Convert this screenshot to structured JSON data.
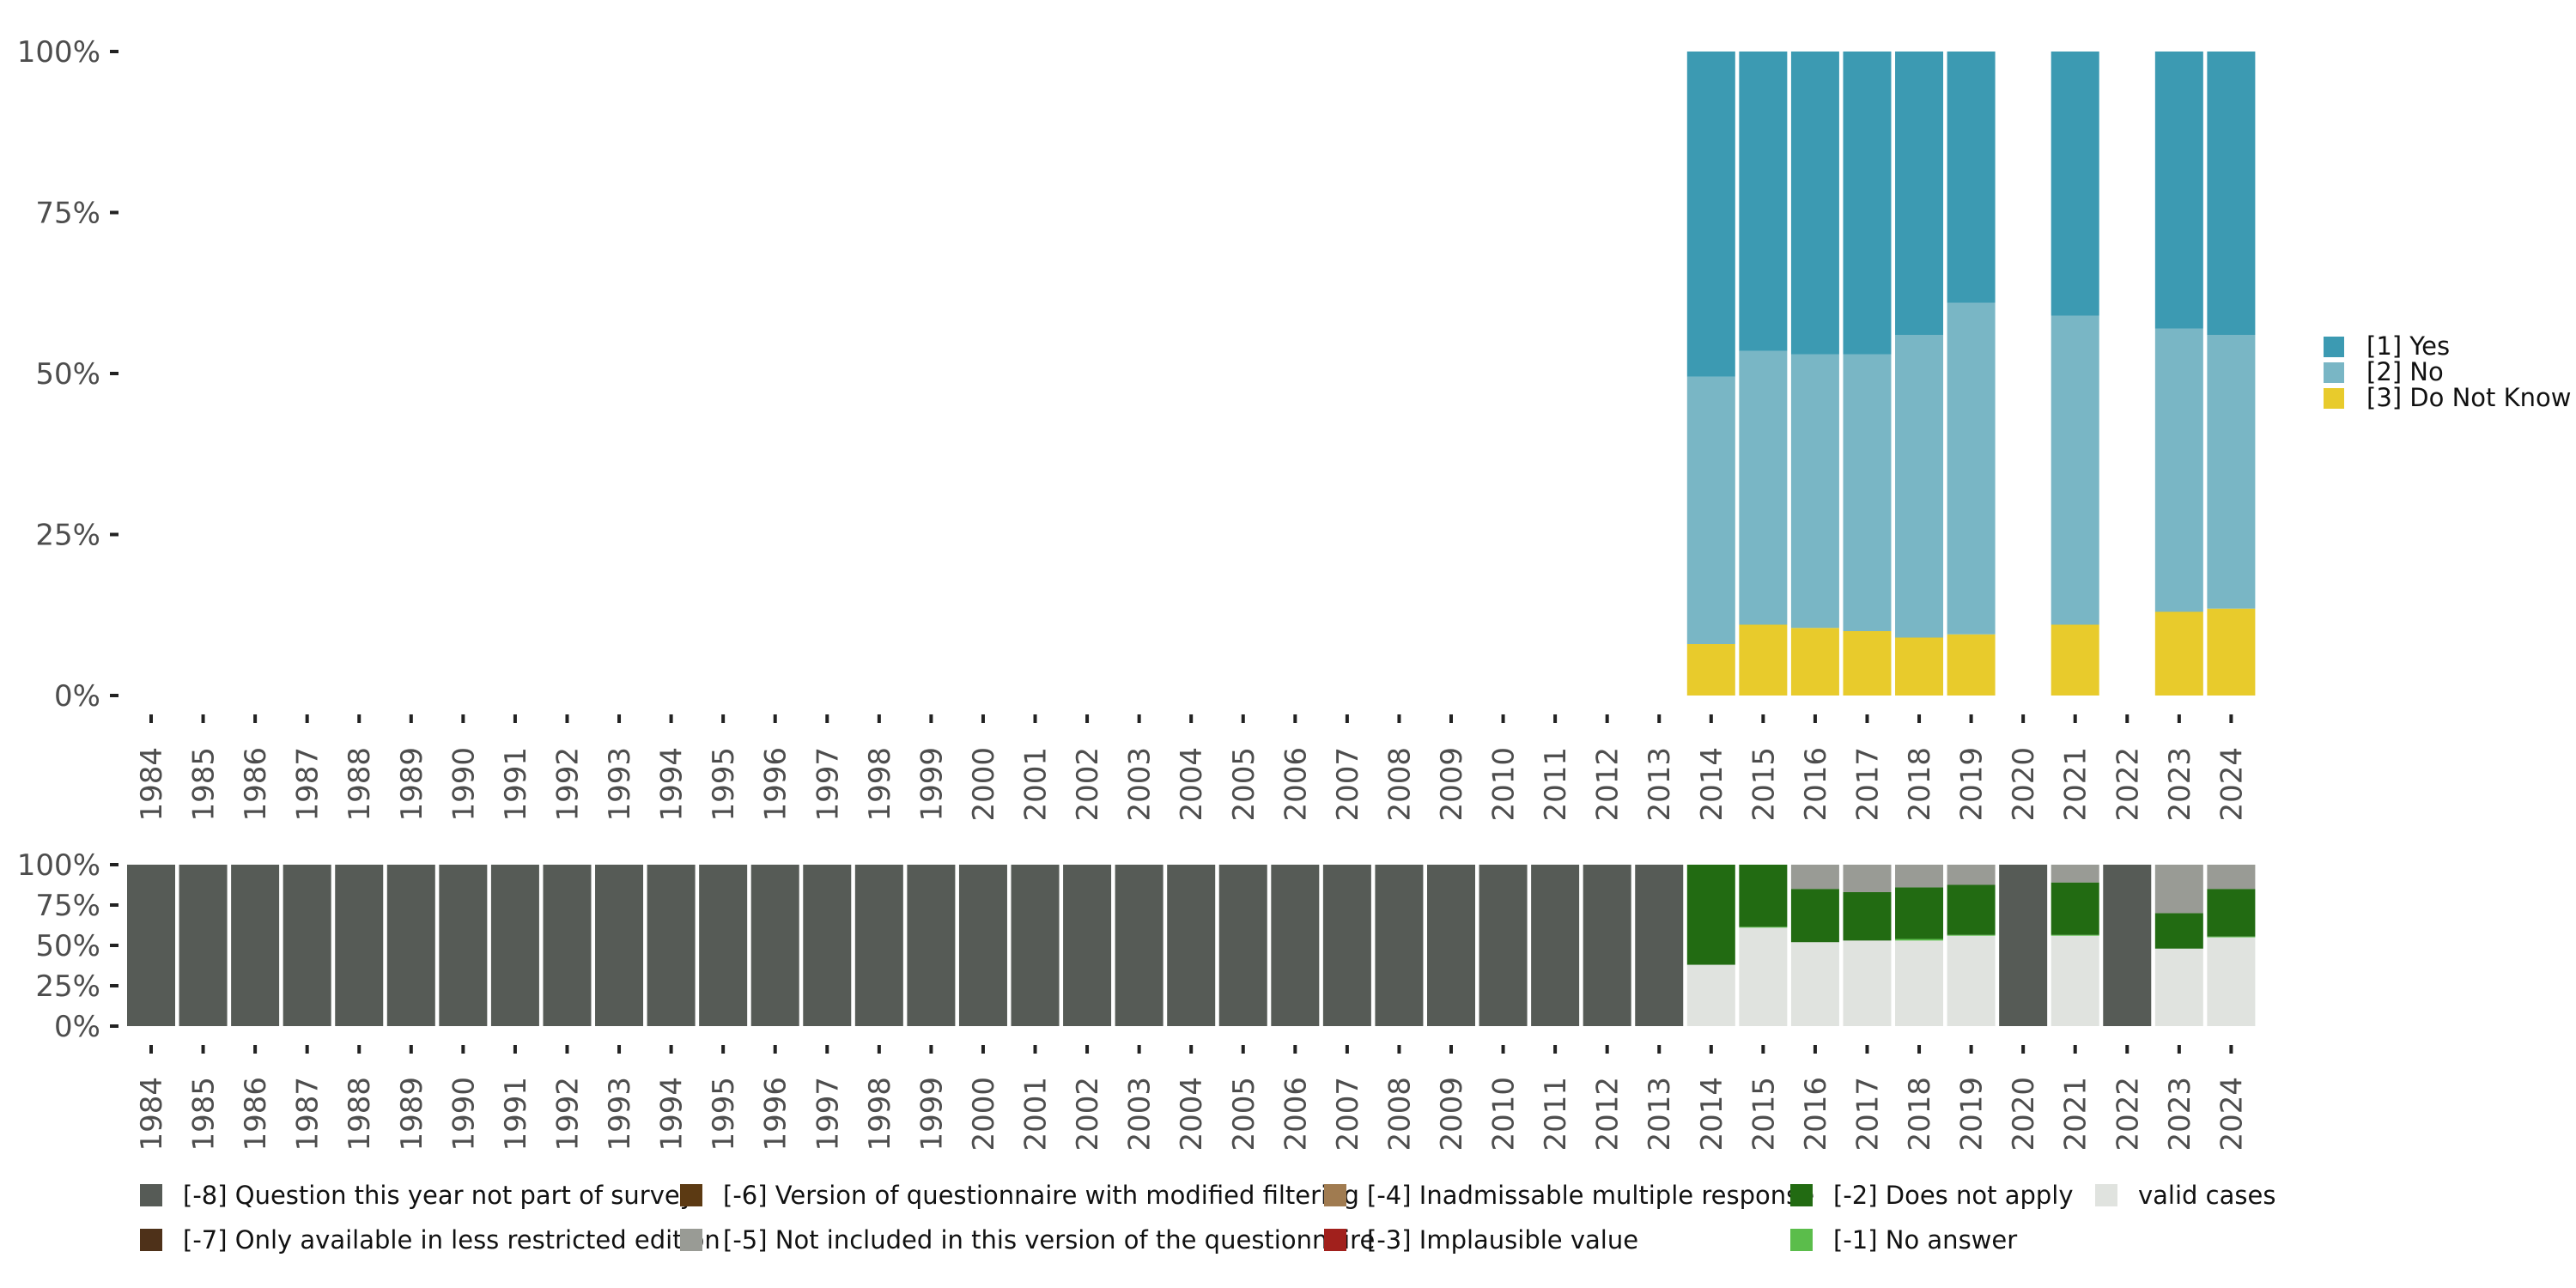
{
  "chart_data": [
    {
      "type": "bar",
      "stacked": true,
      "title": "",
      "xlabel": "",
      "ylabel": "",
      "ylim": [
        0,
        100
      ],
      "y_ticks": [
        "0%",
        "25%",
        "50%",
        "75%",
        "100%"
      ],
      "categories": [
        "1984",
        "1985",
        "1986",
        "1987",
        "1988",
        "1989",
        "1990",
        "1991",
        "1992",
        "1993",
        "1994",
        "1995",
        "1996",
        "1997",
        "1998",
        "1999",
        "2000",
        "2001",
        "2002",
        "2003",
        "2004",
        "2005",
        "2006",
        "2007",
        "2008",
        "2009",
        "2010",
        "2011",
        "2012",
        "2013",
        "2014",
        "2015",
        "2016",
        "2017",
        "2018",
        "2019",
        "2020",
        "2021",
        "2022",
        "2023",
        "2024"
      ],
      "series": [
        {
          "name": "[3] Do Not Know",
          "color": "#E8CB2C",
          "values": [
            null,
            null,
            null,
            null,
            null,
            null,
            null,
            null,
            null,
            null,
            null,
            null,
            null,
            null,
            null,
            null,
            null,
            null,
            null,
            null,
            null,
            null,
            null,
            null,
            null,
            null,
            null,
            null,
            null,
            null,
            8,
            11,
            10.5,
            10,
            9,
            9.5,
            null,
            11,
            null,
            13,
            13.5
          ]
        },
        {
          "name": "[2] No",
          "color": "#79B6C5",
          "values": [
            null,
            null,
            null,
            null,
            null,
            null,
            null,
            null,
            null,
            null,
            null,
            null,
            null,
            null,
            null,
            null,
            null,
            null,
            null,
            null,
            null,
            null,
            null,
            null,
            null,
            null,
            null,
            null,
            null,
            null,
            41.5,
            42.5,
            42.5,
            43,
            47,
            51.5,
            null,
            48,
            null,
            44,
            42.5
          ]
        },
        {
          "name": "[1] Yes",
          "color": "#3C9AB2",
          "values": [
            null,
            null,
            null,
            null,
            null,
            null,
            null,
            null,
            null,
            null,
            null,
            null,
            null,
            null,
            null,
            null,
            null,
            null,
            null,
            null,
            null,
            null,
            null,
            null,
            null,
            null,
            null,
            null,
            null,
            null,
            50.5,
            46.5,
            47,
            47,
            44,
            39,
            null,
            41,
            null,
            43,
            44
          ]
        }
      ],
      "legend": {
        "position": "right",
        "entries": [
          {
            "label": "[1] Yes",
            "color": "#3C9AB2"
          },
          {
            "label": "[2] No",
            "color": "#79B6C5"
          },
          {
            "label": "[3] Do Not Know",
            "color": "#E8CB2C"
          }
        ]
      }
    },
    {
      "type": "bar",
      "stacked": true,
      "title": "",
      "xlabel": "",
      "ylabel": "",
      "ylim": [
        0,
        100
      ],
      "y_ticks": [
        "0%",
        "25%",
        "50%",
        "75%",
        "100%"
      ],
      "categories": [
        "1984",
        "1985",
        "1986",
        "1987",
        "1988",
        "1989",
        "1990",
        "1991",
        "1992",
        "1993",
        "1994",
        "1995",
        "1996",
        "1997",
        "1998",
        "1999",
        "2000",
        "2001",
        "2002",
        "2003",
        "2004",
        "2005",
        "2006",
        "2007",
        "2008",
        "2009",
        "2010",
        "2011",
        "2012",
        "2013",
        "2014",
        "2015",
        "2016",
        "2017",
        "2018",
        "2019",
        "2020",
        "2021",
        "2022",
        "2023",
        "2024"
      ],
      "series": [
        {
          "name": "valid cases",
          "color": "#E0E3DF",
          "values": [
            null,
            null,
            null,
            null,
            null,
            null,
            null,
            null,
            null,
            null,
            null,
            null,
            null,
            null,
            null,
            null,
            null,
            null,
            null,
            null,
            null,
            null,
            null,
            null,
            null,
            null,
            null,
            null,
            null,
            null,
            38,
            61,
            52,
            53,
            53,
            56,
            null,
            56,
            null,
            48,
            55
          ]
        },
        {
          "name": "[-1] No answer",
          "color": "#5BBD4B",
          "values": [
            null,
            null,
            null,
            null,
            null,
            null,
            null,
            null,
            null,
            null,
            null,
            null,
            null,
            null,
            null,
            null,
            null,
            null,
            null,
            null,
            null,
            null,
            null,
            null,
            null,
            null,
            null,
            null,
            null,
            null,
            0,
            0.5,
            0,
            0,
            1,
            0.5,
            null,
            0.5,
            null,
            0,
            0.5
          ]
        },
        {
          "name": "[-2] Does not apply",
          "color": "#226B12",
          "values": [
            null,
            null,
            null,
            null,
            null,
            null,
            null,
            null,
            null,
            null,
            null,
            null,
            null,
            null,
            null,
            null,
            null,
            null,
            null,
            null,
            null,
            null,
            null,
            null,
            null,
            null,
            null,
            null,
            null,
            null,
            62,
            38.5,
            33,
            30,
            32,
            31,
            null,
            32.5,
            null,
            22,
            29.5
          ]
        },
        {
          "name": "[-5] Not included in this version of the questionnaire",
          "color": "#999B95",
          "values": [
            null,
            null,
            null,
            null,
            null,
            null,
            null,
            null,
            null,
            null,
            null,
            null,
            null,
            null,
            null,
            null,
            null,
            null,
            null,
            null,
            null,
            null,
            null,
            null,
            null,
            null,
            null,
            null,
            null,
            null,
            0,
            0,
            15,
            17,
            14,
            12.5,
            null,
            11,
            null,
            30,
            15
          ]
        },
        {
          "name": "[-8] Question this year not part of survey",
          "color": "#565B56",
          "values": [
            100,
            100,
            100,
            100,
            100,
            100,
            100,
            100,
            100,
            100,
            100,
            100,
            100,
            100,
            100,
            100,
            100,
            100,
            100,
            100,
            100,
            100,
            100,
            100,
            100,
            100,
            100,
            100,
            100,
            100,
            0,
            0,
            0,
            0,
            0,
            0,
            100,
            0,
            100,
            0,
            0
          ]
        }
      ],
      "legend": {
        "position": "bottom",
        "entries": [
          {
            "label": "[-8] Question this year not part of survey",
            "color": "#565B56"
          },
          {
            "label": "[-7] Only available in less restricted edition",
            "color": "#4E3119"
          },
          {
            "label": "[-6] Version of questionnaire with modified filtering",
            "color": "#5C3A13"
          },
          {
            "label": "[-5] Not included in this version of the questionnaire",
            "color": "#999B95"
          },
          {
            "label": "[-4] Inadmissable multiple response",
            "color": "#A07B50"
          },
          {
            "label": "[-3] Implausible value",
            "color": "#A1201C"
          },
          {
            "label": "[-2] Does not apply",
            "color": "#226B12"
          },
          {
            "label": "[-1] No answer",
            "color": "#5BBD4B"
          },
          {
            "label": "valid cases",
            "color": "#E0E3DF"
          }
        ]
      }
    }
  ]
}
